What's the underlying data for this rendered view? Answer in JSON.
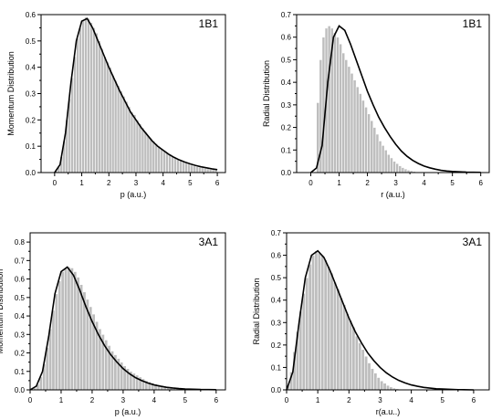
{
  "colors": {
    "bar": "#bdbdbd",
    "bar_edge": "#ffffff",
    "curve": "#000000",
    "axis": "#000000"
  },
  "chart_data": [
    {
      "type": "bar",
      "panel_label": "1B1",
      "xlabel": "p (a.u.)",
      "ylabel": "Momentum Distribution",
      "xlim": [
        -0.5,
        6.3
      ],
      "ylim": [
        0,
        0.6
      ],
      "xticks": [
        "0",
        "1",
        "2",
        "3",
        "4",
        "5",
        "6"
      ],
      "yticks": [
        "0.0",
        "0.1",
        "0.2",
        "0.3",
        "0.4",
        "0.5",
        "0.6"
      ],
      "bin_width": 0.1,
      "histogram": {
        "x_start": 0.0,
        "values": [
          0.005,
          0.02,
          0.06,
          0.12,
          0.2,
          0.28,
          0.36,
          0.44,
          0.51,
          0.55,
          0.58,
          0.59,
          0.585,
          0.57,
          0.55,
          0.53,
          0.5,
          0.47,
          0.44,
          0.42,
          0.4,
          0.37,
          0.35,
          0.33,
          0.31,
          0.29,
          0.27,
          0.25,
          0.23,
          0.22,
          0.2,
          0.185,
          0.17,
          0.155,
          0.14,
          0.13,
          0.12,
          0.11,
          0.1,
          0.09,
          0.08,
          0.075,
          0.07,
          0.062,
          0.055,
          0.05,
          0.045,
          0.04,
          0.036,
          0.032,
          0.028,
          0.025,
          0.022,
          0.02,
          0.018,
          0.016,
          0.014,
          0.012,
          0.011,
          0.01
        ]
      },
      "curve": {
        "x": [
          0.0,
          0.2,
          0.4,
          0.6,
          0.8,
          1.0,
          1.2,
          1.4,
          1.6,
          1.8,
          2.0,
          2.2,
          2.4,
          2.6,
          2.8,
          3.0,
          3.2,
          3.4,
          3.6,
          3.8,
          4.0,
          4.2,
          4.4,
          4.6,
          4.8,
          5.0,
          5.2,
          5.4,
          5.6,
          5.8,
          6.0
        ],
        "y": [
          0.0,
          0.03,
          0.15,
          0.34,
          0.5,
          0.575,
          0.585,
          0.55,
          0.5,
          0.45,
          0.4,
          0.355,
          0.31,
          0.27,
          0.23,
          0.2,
          0.17,
          0.145,
          0.12,
          0.1,
          0.085,
          0.07,
          0.058,
          0.048,
          0.04,
          0.033,
          0.027,
          0.022,
          0.018,
          0.014,
          0.011
        ]
      }
    },
    {
      "type": "bar",
      "panel_label": "1B1",
      "xlabel": "r (a.u.)",
      "ylabel": "Radial Distribution",
      "xlim": [
        -0.5,
        6.3
      ],
      "ylim": [
        0,
        0.7
      ],
      "xticks": [
        "0",
        "1",
        "2",
        "3",
        "4",
        "5",
        "6"
      ],
      "yticks": [
        "0.0",
        "0.1",
        "0.2",
        "0.3",
        "0.4",
        "0.5",
        "0.6",
        "0.7"
      ],
      "bin_width": 0.1,
      "histogram": {
        "x_start": 0.0,
        "values": [
          0.0,
          0.0,
          0.31,
          0.5,
          0.6,
          0.64,
          0.65,
          0.64,
          0.62,
          0.6,
          0.57,
          0.53,
          0.5,
          0.47,
          0.44,
          0.41,
          0.38,
          0.35,
          0.32,
          0.29,
          0.26,
          0.23,
          0.2,
          0.17,
          0.14,
          0.12,
          0.1,
          0.08,
          0.065,
          0.05,
          0.04,
          0.03,
          0.022,
          0.016,
          0.011,
          0.008,
          0.005,
          0.003
        ]
      },
      "curve": {
        "x": [
          0.0,
          0.2,
          0.4,
          0.6,
          0.8,
          1.0,
          1.2,
          1.4,
          1.6,
          1.8,
          2.0,
          2.2,
          2.4,
          2.6,
          2.8,
          3.0,
          3.2,
          3.4,
          3.6,
          3.8,
          4.0,
          4.2,
          4.4,
          4.6,
          4.8,
          5.0,
          5.5,
          6.0
        ],
        "y": [
          0.0,
          0.02,
          0.12,
          0.4,
          0.6,
          0.65,
          0.63,
          0.57,
          0.5,
          0.43,
          0.36,
          0.3,
          0.245,
          0.2,
          0.16,
          0.125,
          0.095,
          0.072,
          0.054,
          0.04,
          0.029,
          0.021,
          0.015,
          0.01,
          0.007,
          0.005,
          0.002,
          0.001
        ]
      }
    },
    {
      "type": "bar",
      "panel_label": "3A1",
      "xlabel": "p (a.u.)",
      "ylabel": "Momentum Distribution",
      "xlim": [
        0,
        6.3
      ],
      "ylim": [
        0,
        0.85
      ],
      "xticks": [
        "0",
        "1",
        "2",
        "3",
        "4",
        "5",
        "6"
      ],
      "yticks": [
        "0.0",
        "0.1",
        "0.2",
        "0.3",
        "0.4",
        "0.5",
        "0.6",
        "0.7",
        "0.8"
      ],
      "bin_width": 0.1,
      "histogram": {
        "x_start": 0.0,
        "values": [
          0.002,
          0.01,
          0.03,
          0.07,
          0.14,
          0.23,
          0.33,
          0.43,
          0.52,
          0.59,
          0.64,
          0.66,
          0.665,
          0.66,
          0.64,
          0.61,
          0.57,
          0.53,
          0.49,
          0.45,
          0.41,
          0.37,
          0.33,
          0.3,
          0.27,
          0.24,
          0.21,
          0.19,
          0.17,
          0.15,
          0.13,
          0.115,
          0.1,
          0.09,
          0.08,
          0.07,
          0.06,
          0.05,
          0.044,
          0.038,
          0.032,
          0.027,
          0.023,
          0.02,
          0.017,
          0.014,
          0.012,
          0.01,
          0.008,
          0.007,
          0.006,
          0.005,
          0.004,
          0.003,
          0.002
        ]
      },
      "curve": {
        "x": [
          0.0,
          0.2,
          0.4,
          0.6,
          0.8,
          1.0,
          1.2,
          1.4,
          1.6,
          1.8,
          2.0,
          2.2,
          2.4,
          2.6,
          2.8,
          3.0,
          3.2,
          3.4,
          3.6,
          3.8,
          4.0,
          4.2,
          4.4,
          4.6,
          4.8,
          5.0,
          5.5,
          6.0
        ],
        "y": [
          0.0,
          0.02,
          0.1,
          0.29,
          0.52,
          0.64,
          0.665,
          0.62,
          0.54,
          0.45,
          0.37,
          0.3,
          0.24,
          0.19,
          0.15,
          0.115,
          0.088,
          0.066,
          0.05,
          0.037,
          0.027,
          0.02,
          0.014,
          0.01,
          0.007,
          0.005,
          0.002,
          0.001
        ]
      }
    },
    {
      "type": "bar",
      "panel_label": "3A1",
      "xlabel": "r(a.u..)",
      "ylabel": "Radial Distribution",
      "xlim": [
        0,
        6.5
      ],
      "ylim": [
        0,
        0.7
      ],
      "xticks": [
        "0",
        "1",
        "2",
        "3",
        "4",
        "5",
        "6"
      ],
      "yticks": [
        "0.0",
        "0.1",
        "0.2",
        "0.3",
        "0.4",
        "0.5",
        "0.6",
        "0.7"
      ],
      "bin_width": 0.1,
      "histogram": {
        "x_start": 0.0,
        "values": [
          0.02,
          0.08,
          0.17,
          0.26,
          0.35,
          0.43,
          0.5,
          0.56,
          0.6,
          0.62,
          0.61,
          0.6,
          0.58,
          0.55,
          0.52,
          0.48,
          0.45,
          0.41,
          0.38,
          0.34,
          0.31,
          0.28,
          0.24,
          0.21,
          0.18,
          0.15,
          0.12,
          0.095,
          0.075,
          0.055,
          0.04,
          0.03,
          0.02,
          0.013,
          0.008,
          0.005,
          0.003
        ]
      },
      "curve": {
        "x": [
          0.0,
          0.2,
          0.4,
          0.6,
          0.8,
          1.0,
          1.2,
          1.4,
          1.6,
          1.8,
          2.0,
          2.2,
          2.4,
          2.6,
          2.8,
          3.0,
          3.2,
          3.4,
          3.6,
          3.8,
          4.0,
          4.2,
          4.4,
          4.6,
          4.8,
          5.0,
          5.5,
          6.0
        ],
        "y": [
          0.0,
          0.08,
          0.3,
          0.5,
          0.6,
          0.62,
          0.59,
          0.53,
          0.46,
          0.39,
          0.32,
          0.26,
          0.21,
          0.165,
          0.13,
          0.1,
          0.076,
          0.057,
          0.042,
          0.031,
          0.022,
          0.016,
          0.011,
          0.008,
          0.005,
          0.004,
          0.001,
          0.0
        ]
      }
    }
  ]
}
